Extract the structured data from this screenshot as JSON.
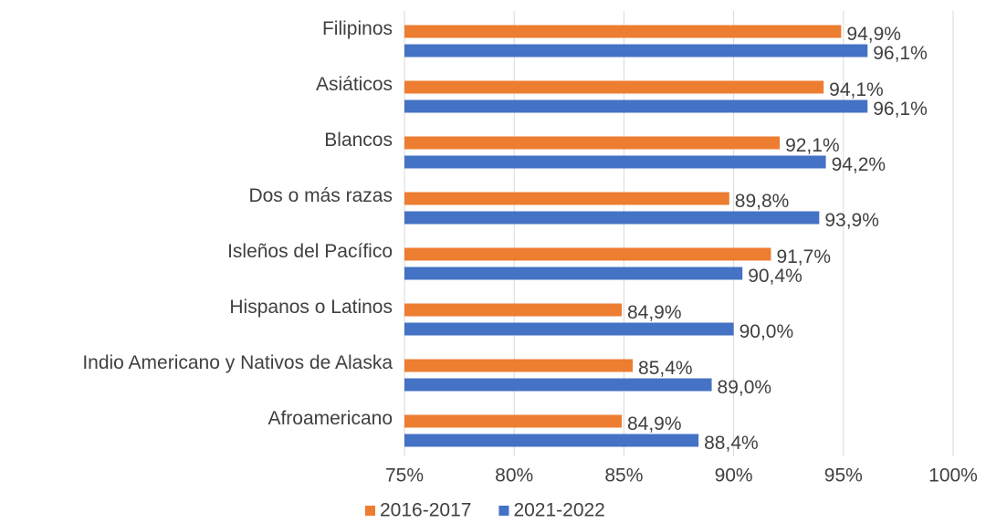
{
  "chart_data": {
    "type": "hbar",
    "categories": [
      "Filipinos",
      "Asiáticos",
      "Blancos",
      "Dos o más razas",
      "Isleños del Pacífico",
      "Hispanos o Latinos",
      "Indio Americano y Nativos de Alaska",
      "Afroamericano"
    ],
    "series": [
      {
        "name": "2016-2017",
        "color": "#ed7d31",
        "values": [
          94.9,
          94.1,
          92.1,
          89.8,
          91.7,
          84.9,
          85.4,
          84.9
        ],
        "value_labels": [
          "94,9%",
          "94,1%",
          "92,1%",
          "89,8%",
          "91,7%",
          "84,9%",
          "85,4%",
          "84,9%"
        ]
      },
      {
        "name": "2021-2022",
        "color": "#4472c4",
        "values": [
          96.1,
          96.1,
          94.2,
          93.9,
          90.4,
          90.0,
          89.0,
          88.4
        ],
        "value_labels": [
          "96,1%",
          "96,1%",
          "94,2%",
          "93,9%",
          "90,4%",
          "90,0%",
          "89,0%",
          "88,4%"
        ]
      }
    ],
    "xlim": [
      75,
      100
    ],
    "xticks": [
      {
        "value": 75,
        "label": "75%"
      },
      {
        "value": 80,
        "label": "80%"
      },
      {
        "value": 85,
        "label": "85%"
      },
      {
        "value": 90,
        "label": "90%"
      },
      {
        "value": 95,
        "label": "95%"
      },
      {
        "value": 100,
        "label": "100%"
      }
    ],
    "grid": true,
    "legend": "bottom"
  }
}
